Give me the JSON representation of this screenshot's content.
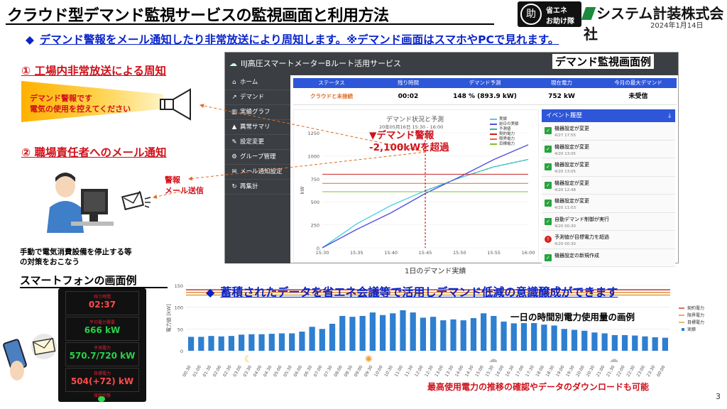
{
  "header": {
    "title": "クラウド型デマンド監視サービスの監視画面と利用方法",
    "logo1_mark": "助",
    "logo1_line1": "省エネ",
    "logo1_line2": "お助け隊",
    "logo2": "システム計装株式会社",
    "date": "2024年1月14日"
  },
  "subtitle": "デマンド警報をメール通知したり非常放送により周知します。※デマンド画面はスマホやPCで見れます。",
  "diamond": "◆",
  "left": {
    "section1": "① 工場内非常放送による周知",
    "broadcast_line1": "デマンド警報です",
    "broadcast_line2": "電気の使用を控えてください",
    "section2": "② 職場責任者へのメール通知",
    "alarm_line1": "警報",
    "alarm_line2": "メール送信",
    "manual_line1": "手動で電気消費設備を停止する等",
    "manual_line2": "の対策をおこなう",
    "smartphone_title": "スマートフォンの画面例",
    "phone": [
      {
        "label": "残り時間",
        "value": "02:37",
        "color": "#ff4a4a"
      },
      {
        "label": "平均電力需要",
        "value": "666 kW",
        "color": "#28d24a"
      },
      {
        "label": "予測電力",
        "value": "570.7/720 kW",
        "color": "#28d24a"
      },
      {
        "label": "目標電力",
        "value": "504(+72) kW",
        "color": "#ff4a4a"
      }
    ],
    "phone_status": "接続状態"
  },
  "screen": {
    "example_label": "デマンド監視画面例",
    "app_title": "IIJ高圧スマートメーターBルート活用サービス",
    "sidebar": [
      {
        "icon": "⌂",
        "label": "ホーム"
      },
      {
        "icon": "↗",
        "label": "デマンド"
      },
      {
        "icon": "▥",
        "label": "実績グラフ"
      },
      {
        "icon": "▲",
        "label": "異常サマリ"
      },
      {
        "icon": "✎",
        "label": "設定変更"
      },
      {
        "icon": "⚙",
        "label": "グループ管理"
      },
      {
        "icon": "✉",
        "label": "メール通知設定"
      },
      {
        "icon": "↻",
        "label": "再集計"
      }
    ],
    "status_headers": [
      "ステータス",
      "残り時間",
      "デマンド予測",
      "現在電力",
      "今月の最大デマンド"
    ],
    "status_values": [
      "クラウドと未接続",
      "00:02",
      "148 % (893.9 kW)",
      "752 kW",
      "未受信"
    ],
    "chart_title": "デマンド状況と予測",
    "chart_sub": "20年05月16日 15:30 - 16:00",
    "warning_line1": "▼デマンド警報",
    "warning_line2": "-2,100kWを超過",
    "event_title": "イベント履歴",
    "events": [
      {
        "title": "機器設定が変更",
        "date": "4/27 17:55",
        "warn": false
      },
      {
        "title": "機器設定が変更",
        "date": "4/20 13:05",
        "warn": false
      },
      {
        "title": "機器設定が変更",
        "date": "4/20 13:05",
        "warn": false
      },
      {
        "title": "機器設定が変更",
        "date": "4/20 12:48",
        "warn": false
      },
      {
        "title": "機器設定が変更",
        "date": "4/20 11:03",
        "warn": false
      },
      {
        "title": "自動デマンド制御が実行",
        "date": "4/20 00:30",
        "warn": false
      },
      {
        "title": "予測値が目標電力を超過",
        "date": "4/20 00:30",
        "warn": true
      },
      {
        "title": "機器設定の新規作成",
        "date": "",
        "warn": false
      }
    ],
    "history_label": "1日のデマンド実績"
  },
  "history": {
    "heading": "蓄積されたデータを省エネ会議等で活用しデマンド低減の意識醸成ができます",
    "example": "一日の時間別電力使用量の画例",
    "bottom_note": "最高使用電力の推移の確認やデータのダウンロードも可能",
    "page_number": "3"
  },
  "chart_data": [
    {
      "type": "line",
      "title": "デマンド状況と予測",
      "x": [
        "15:30",
        "15:35",
        "15:40",
        "15:45",
        "15:50",
        "15:55",
        "16:00"
      ],
      "ylim": [
        0,
        1250
      ],
      "yticks": [
        0,
        250,
        500,
        750,
        1000,
        1250
      ],
      "ylabel": "kW",
      "series": [
        {
          "name": "実績",
          "color": "#4fd0e0",
          "values": [
            0,
            260,
            460,
            620,
            760,
            880,
            960
          ]
        },
        {
          "name": "前日の実績",
          "color": "#5050e0",
          "values": [
            0,
            200,
            380,
            590,
            770,
            960,
            1120
          ]
        },
        {
          "name": "予測値",
          "color": "#38b0a0",
          "values": [
            null,
            null,
            null,
            620,
            760,
            880,
            960
          ]
        },
        {
          "name": "契約電力",
          "color": "#c82020",
          "values": [
            800,
            800,
            800,
            800,
            800,
            800,
            800
          ]
        },
        {
          "name": "限界電力",
          "color": "#e07020",
          "values": [
            700,
            700,
            700,
            700,
            700,
            700,
            700
          ]
        },
        {
          "name": "目標電力",
          "color": "#80c030",
          "values": [
            610,
            610,
            610,
            610,
            610,
            610,
            610
          ]
        }
      ],
      "legend": "top-right"
    },
    {
      "type": "bar",
      "categories": [
        "00:30",
        "01:00",
        "01:30",
        "02:00",
        "02:30",
        "03:00",
        "03:30",
        "04:00",
        "04:30",
        "05:00",
        "05:30",
        "06:00",
        "06:30",
        "07:00",
        "07:30",
        "08:00",
        "08:30",
        "09:00",
        "09:30",
        "10:00",
        "10:30",
        "11:00",
        "11:30",
        "12:00",
        "12:30",
        "13:00",
        "13:30",
        "14:00",
        "14:30",
        "15:00",
        "15:30",
        "16:00",
        "16:30",
        "17:00",
        "17:30",
        "18:00",
        "18:30",
        "19:00",
        "19:30",
        "20:00",
        "20:30",
        "21:00",
        "21:30",
        "22:00",
        "22:30",
        "23:00",
        "23:30",
        "00:00"
      ],
      "values": [
        32,
        32,
        34,
        33,
        34,
        37,
        38,
        38,
        39,
        40,
        40,
        44,
        55,
        50,
        62,
        80,
        78,
        80,
        88,
        82,
        86,
        93,
        88,
        76,
        78,
        70,
        72,
        70,
        75,
        86,
        80,
        67,
        63,
        66,
        64,
        60,
        58,
        50,
        48,
        46,
        42,
        40,
        36,
        36,
        35,
        33,
        31,
        30
      ],
      "ylim": [
        0,
        150
      ],
      "yticks": [
        0,
        50,
        100,
        150
      ],
      "ylabel": "電力値 [kW]",
      "series": [
        {
          "name": "実績",
          "color": "#2e7fd0"
        }
      ],
      "reference_lines": [
        {
          "name": "契約電力",
          "value": 140,
          "color": "#c83020"
        },
        {
          "name": "限界電力",
          "value": 134,
          "color": "#e08030"
        },
        {
          "name": "目標電力",
          "value": 128,
          "color": "#d8a030"
        }
      ],
      "legend": "right"
    }
  ]
}
